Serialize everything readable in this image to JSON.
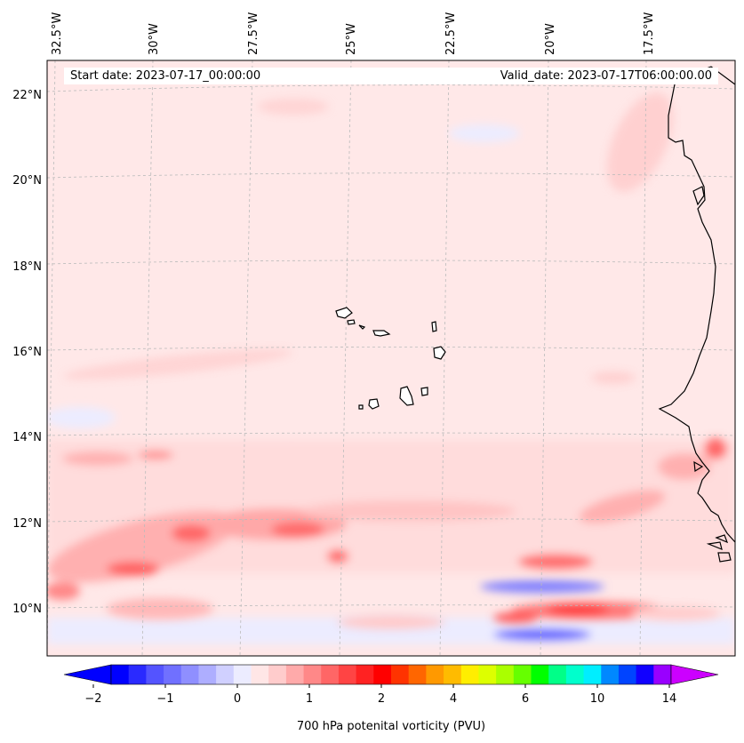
{
  "map": {
    "start_date": "Start date: 2023-07-17_00:00:00",
    "valid_date": "Valid_date: 2023-07-17T06:00:00.00",
    "lon_labels": [
      "32.5°W",
      "30°W",
      "27.5°W",
      "25°W",
      "22.5°W",
      "20°W",
      "17.5°W"
    ],
    "lat_labels": [
      "22°N",
      "20°N",
      "18°N",
      "16°N",
      "14°N",
      "12°N",
      "10°N"
    ],
    "colors": {
      "background_field": "#ffe8e8",
      "coastline": "#000000",
      "gridline": "#bbbbbb"
    }
  },
  "colorbar": {
    "label": "700 hPa potenital vorticity (PVU)",
    "tick_labels": [
      "−2",
      "−1",
      "0",
      "1",
      "2",
      "4",
      "6",
      "10",
      "14"
    ],
    "colors": [
      "#0000ff",
      "#2a2aff",
      "#5454ff",
      "#7070ff",
      "#8f8fff",
      "#aeaeff",
      "#d0d0ff",
      "#ececff",
      "#ffe6e6",
      "#ffcccc",
      "#ffaaaa",
      "#ff8888",
      "#ff6666",
      "#ff4444",
      "#ff2222",
      "#ff0000",
      "#ff3300",
      "#ff6600",
      "#ff9900",
      "#ffbb00",
      "#ffee00",
      "#ddff00",
      "#aaff00",
      "#66ff00",
      "#00ff00",
      "#00ff88",
      "#00ffcc",
      "#00eeff",
      "#0088ff",
      "#0044ff",
      "#1100ff",
      "#9900ff"
    ],
    "extend_low_color": "#0000ff",
    "extend_high_color": "#cc00ff"
  }
}
